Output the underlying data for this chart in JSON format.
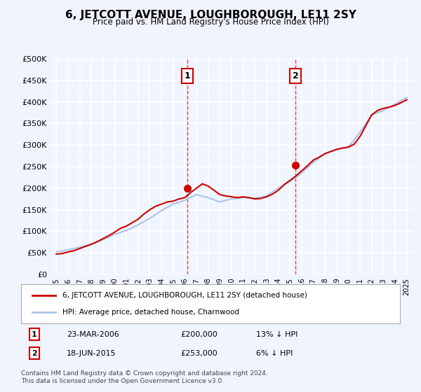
{
  "title": "6, JETCOTT AVENUE, LOUGHBOROUGH, LE11 2SY",
  "subtitle": "Price paid vs. HM Land Registry's House Price Index (HPI)",
  "ylabel_ticks": [
    "£0",
    "£50K",
    "£100K",
    "£150K",
    "£200K",
    "£250K",
    "£300K",
    "£350K",
    "£400K",
    "£450K",
    "£500K"
  ],
  "ylim": [
    0,
    500000
  ],
  "ytick_vals": [
    0,
    50000,
    100000,
    150000,
    200000,
    250000,
    300000,
    350000,
    400000,
    450000,
    500000
  ],
  "background_color": "#f0f4ff",
  "plot_bg_color": "#f0f4ff",
  "grid_color": "#ffffff",
  "sale1": {
    "year": 2006.22,
    "price": 200000,
    "label": "1"
  },
  "sale2": {
    "year": 2015.46,
    "price": 253000,
    "label": "2"
  },
  "legend_line1": "6, JETCOTT AVENUE, LOUGHBOROUGH, LE11 2SY (detached house)",
  "legend_line2": "HPI: Average price, detached house, Charnwood",
  "table_row1": [
    "1",
    "23-MAR-2006",
    "£200,000",
    "13% ↓ HPI"
  ],
  "table_row2": [
    "2",
    "18-JUN-2015",
    "£253,000",
    "6% ↓ HPI"
  ],
  "footer": "Contains HM Land Registry data © Crown copyright and database right 2024.\nThis data is licensed under the Open Government Licence v3.0.",
  "hpi_color": "#aac4e8",
  "price_color": "#cc0000",
  "sale_marker_color": "#cc0000",
  "dashed_line_color": "#cc0000",
  "hpi_years": [
    1995,
    1996,
    1997,
    1998,
    1999,
    2000,
    2001,
    2002,
    2003,
    2004,
    2005,
    2006,
    2007,
    2008,
    2009,
    2010,
    2011,
    2012,
    2013,
    2014,
    2015,
    2016,
    2017,
    2018,
    2019,
    2020,
    2021,
    2022,
    2023,
    2024,
    2025
  ],
  "hpi_values": [
    52000,
    57000,
    63000,
    70000,
    80000,
    93000,
    102000,
    115000,
    130000,
    148000,
    163000,
    172000,
    185000,
    178000,
    168000,
    175000,
    178000,
    177000,
    182000,
    200000,
    215000,
    235000,
    260000,
    280000,
    290000,
    295000,
    330000,
    370000,
    380000,
    395000,
    410000
  ],
  "price_years": [
    1995.0,
    1995.5,
    1996.0,
    1996.5,
    1997.0,
    1997.5,
    1998.0,
    1998.5,
    1999.0,
    1999.5,
    2000.0,
    2000.5,
    2001.0,
    2001.5,
    2002.0,
    2002.5,
    2003.0,
    2003.5,
    2004.0,
    2004.5,
    2005.0,
    2005.5,
    2006.0,
    2006.5,
    2007.0,
    2007.5,
    2008.0,
    2008.5,
    2009.0,
    2009.5,
    2010.0,
    2010.5,
    2011.0,
    2011.5,
    2012.0,
    2012.5,
    2013.0,
    2013.5,
    2014.0,
    2014.5,
    2015.0,
    2015.5,
    2016.0,
    2016.5,
    2017.0,
    2017.5,
    2018.0,
    2018.5,
    2019.0,
    2019.5,
    2020.0,
    2020.5,
    2021.0,
    2021.5,
    2022.0,
    2022.5,
    2023.0,
    2023.5,
    2024.0,
    2024.5,
    2025.0
  ],
  "price_values": [
    47000,
    48500,
    52000,
    55000,
    60000,
    65000,
    70000,
    76000,
    83000,
    90000,
    98000,
    107000,
    112000,
    120000,
    128000,
    140000,
    150000,
    158000,
    163000,
    168000,
    170000,
    175000,
    178000,
    190000,
    200000,
    210000,
    205000,
    195000,
    185000,
    182000,
    180000,
    178000,
    180000,
    178000,
    175000,
    176000,
    180000,
    186000,
    195000,
    208000,
    218000,
    228000,
    240000,
    252000,
    265000,
    272000,
    280000,
    285000,
    290000,
    293000,
    295000,
    302000,
    320000,
    345000,
    370000,
    380000,
    385000,
    388000,
    392000,
    398000,
    405000
  ],
  "xtick_years": [
    1995,
    1996,
    1997,
    1998,
    1999,
    2000,
    2001,
    2002,
    2003,
    2004,
    2005,
    2006,
    2007,
    2008,
    2009,
    2010,
    2011,
    2012,
    2013,
    2014,
    2015,
    2016,
    2017,
    2018,
    2019,
    2020,
    2021,
    2022,
    2023,
    2024,
    2025
  ]
}
